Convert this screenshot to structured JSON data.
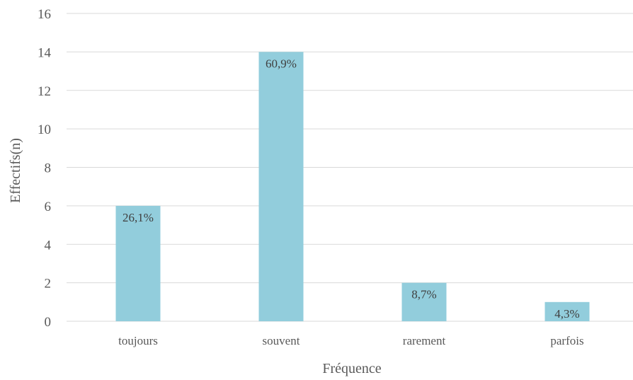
{
  "chart_data": {
    "type": "bar",
    "title": "",
    "xlabel": "Fréquence",
    "ylabel": "Effectifs(n)",
    "categories": [
      "toujours",
      "souvent",
      "rarement",
      "parfois"
    ],
    "values": [
      6,
      14,
      2,
      1
    ],
    "data_labels": [
      "26,1%",
      "60,9%",
      "8,7%",
      "4,3%"
    ],
    "ylim": [
      0,
      16
    ],
    "yticks": [
      0,
      2,
      4,
      6,
      8,
      10,
      12,
      14,
      16
    ],
    "grid": true,
    "legend": "none",
    "bar_color": "#92cddc"
  }
}
